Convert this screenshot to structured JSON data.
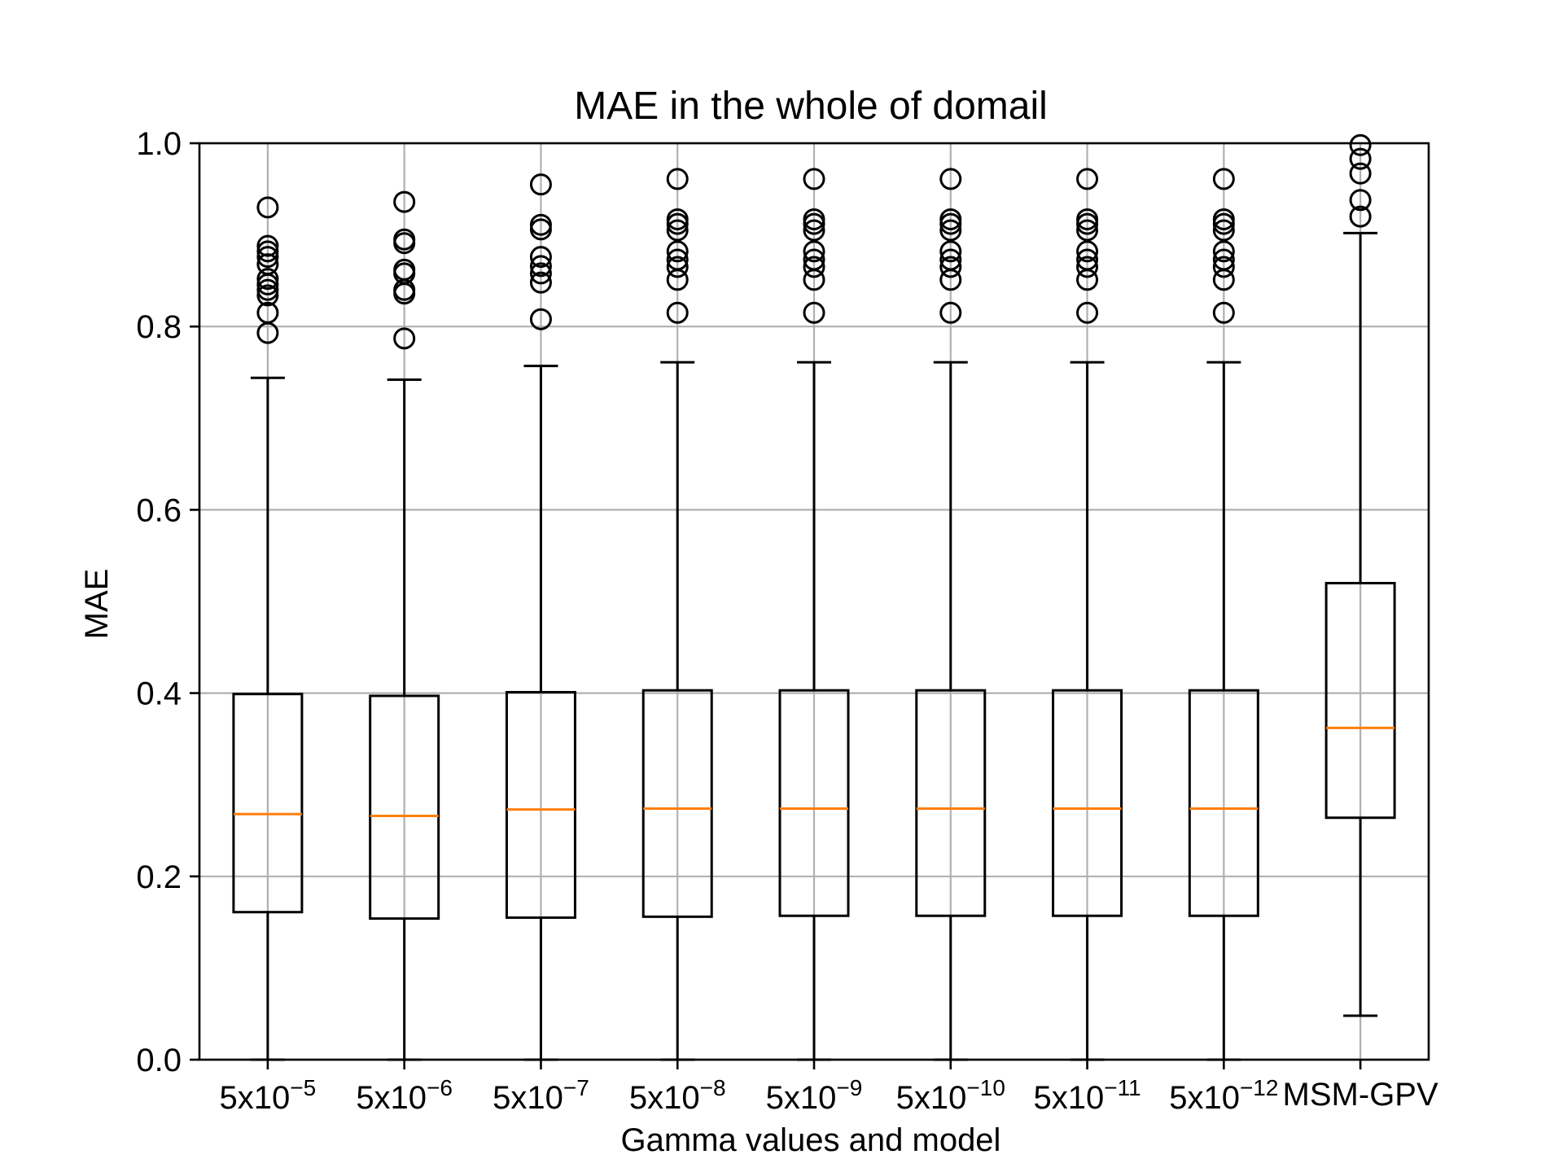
{
  "chart_data": {
    "type": "box",
    "title": "MAE in the whole of domail",
    "xlabel": "Gamma values and model",
    "ylabel": "MAE",
    "ylim": [
      0.0,
      1.0
    ],
    "yticks": [
      "0.0",
      "0.2",
      "0.4",
      "0.6",
      "0.8",
      "1.0"
    ],
    "grid": true,
    "colors": {
      "box": "#000000",
      "median": "#ff7f0e",
      "grid": "#b0b0b0"
    },
    "categories": [
      {
        "base": "5x10",
        "exp": "−5"
      },
      {
        "base": "5x10",
        "exp": "−6"
      },
      {
        "base": "5x10",
        "exp": "−7"
      },
      {
        "base": "5x10",
        "exp": "−8"
      },
      {
        "base": "5x10",
        "exp": "−9"
      },
      {
        "base": "5x10",
        "exp": "−10"
      },
      {
        "base": "5x10",
        "exp": "−11"
      },
      {
        "base": "5x10",
        "exp": "−12"
      },
      {
        "base": "MSM-GPV",
        "exp": ""
      }
    ],
    "boxes": [
      {
        "whislo": 0.0,
        "q1": 0.161,
        "med": 0.268,
        "q3": 0.399,
        "whishi": 0.744,
        "fliers": [
          0.793,
          0.815,
          0.834,
          0.84,
          0.846,
          0.852,
          0.868,
          0.876,
          0.882,
          0.888,
          0.93
        ]
      },
      {
        "whislo": 0.0,
        "q1": 0.154,
        "med": 0.266,
        "q3": 0.397,
        "whishi": 0.742,
        "fliers": [
          0.787,
          0.836,
          0.84,
          0.858,
          0.862,
          0.891,
          0.895,
          0.936
        ]
      },
      {
        "whislo": 0.0,
        "q1": 0.155,
        "med": 0.273,
        "q3": 0.401,
        "whishi": 0.757,
        "fliers": [
          0.808,
          0.848,
          0.858,
          0.866,
          0.876,
          0.906,
          0.911,
          0.955
        ]
      },
      {
        "whislo": 0.0,
        "q1": 0.156,
        "med": 0.274,
        "q3": 0.403,
        "whishi": 0.761,
        "fliers": [
          0.815,
          0.851,
          0.865,
          0.873,
          0.882,
          0.905,
          0.912,
          0.917,
          0.961
        ]
      },
      {
        "whislo": 0.0,
        "q1": 0.157,
        "med": 0.274,
        "q3": 0.403,
        "whishi": 0.761,
        "fliers": [
          0.815,
          0.851,
          0.865,
          0.873,
          0.882,
          0.905,
          0.912,
          0.917,
          0.961
        ]
      },
      {
        "whislo": 0.0,
        "q1": 0.157,
        "med": 0.274,
        "q3": 0.403,
        "whishi": 0.761,
        "fliers": [
          0.815,
          0.851,
          0.865,
          0.873,
          0.882,
          0.905,
          0.912,
          0.917,
          0.961
        ]
      },
      {
        "whislo": 0.0,
        "q1": 0.157,
        "med": 0.274,
        "q3": 0.403,
        "whishi": 0.761,
        "fliers": [
          0.815,
          0.851,
          0.865,
          0.873,
          0.882,
          0.905,
          0.912,
          0.917,
          0.961
        ]
      },
      {
        "whislo": 0.0,
        "q1": 0.157,
        "med": 0.274,
        "q3": 0.403,
        "whishi": 0.761,
        "fliers": [
          0.815,
          0.851,
          0.865,
          0.873,
          0.882,
          0.905,
          0.912,
          0.917,
          0.961
        ]
      },
      {
        "whislo": 0.048,
        "q1": 0.264,
        "med": 0.362,
        "q3": 0.52,
        "whishi": 0.902,
        "fliers": [
          0.92,
          0.938,
          0.967,
          0.983,
          0.998
        ]
      }
    ]
  }
}
